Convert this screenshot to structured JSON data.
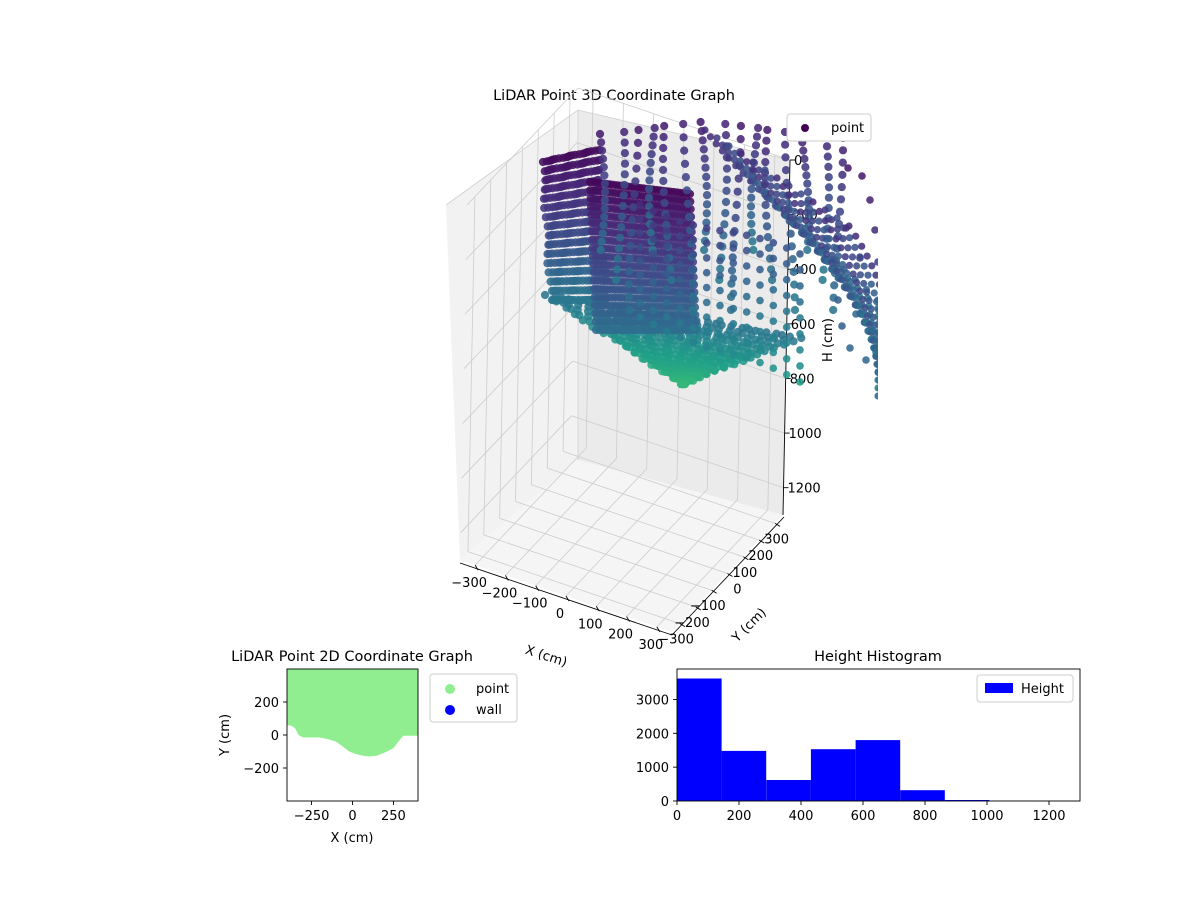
{
  "chart_data": [
    {
      "type": "scatter",
      "projection": "3d",
      "title": "LiDAR Point 3D Coordinate Graph",
      "xlabel": "X (cm)",
      "ylabel": "Y (cm)",
      "zlabel": "H (cm)",
      "xticks": [
        "−300",
        "−200",
        "−100",
        "0",
        "100",
        "200",
        "300"
      ],
      "yticks": [
        "−300",
        "−200",
        "−100",
        "0",
        "100",
        "200",
        "300"
      ],
      "zticks": [
        "0",
        "200",
        "400",
        "600",
        "800",
        "1000",
        "1200"
      ],
      "xlim": [
        -350,
        350
      ],
      "ylim": [
        -350,
        350
      ],
      "zlim": [
        1300,
        0
      ],
      "zaxis_inverted": true,
      "colormap": "viridis",
      "grid": true,
      "legend": {
        "position": "top-right",
        "entries": [
          {
            "label": "point",
            "color": "#440154"
          }
        ]
      }
    },
    {
      "type": "scatter",
      "title": "LiDAR Point 2D Coordinate Graph",
      "xlabel": "X (cm)",
      "ylabel": "Y (cm)",
      "xticks": [
        "−250",
        "0",
        "250"
      ],
      "yticks": [
        "200",
        "0",
        "−200"
      ],
      "xlim": [
        -400,
        400
      ],
      "ylim": [
        -400,
        400
      ],
      "legend": {
        "position": "outside-right",
        "entries": [
          {
            "label": "point",
            "color": "#90ee90"
          },
          {
            "label": "wall",
            "color": "#0000ff"
          }
        ]
      },
      "boundary": {
        "x": [
          -400,
          -370,
          -350,
          -330,
          -300,
          -250,
          -200,
          -150,
          -100,
          -60,
          -20,
          20,
          60,
          100,
          150,
          200,
          250,
          280,
          310,
          330,
          350,
          380,
          400
        ],
        "y": [
          60,
          55,
          40,
          0,
          -15,
          -15,
          -15,
          -25,
          -40,
          -70,
          -100,
          -115,
          -125,
          -130,
          -125,
          -105,
          -80,
          -40,
          -5,
          -5,
          -5,
          -5,
          -5
        ]
      }
    },
    {
      "type": "bar",
      "subtype": "histogram",
      "title": "Height Histogram",
      "bin_edges": [
        0,
        144,
        288,
        432,
        576,
        720,
        864,
        1008,
        1152,
        1296
      ],
      "values": [
        3620,
        1480,
        620,
        1530,
        1800,
        320,
        30,
        5,
        2
      ],
      "xticks": [
        "0",
        "200",
        "400",
        "600",
        "800",
        "1000",
        "1200"
      ],
      "yticks": [
        "0",
        "1000",
        "2000",
        "3000"
      ],
      "xlim": [
        0,
        1300
      ],
      "ylim": [
        0,
        3900
      ],
      "color": "#0000ff",
      "legend": {
        "position": "top-right",
        "entries": [
          {
            "label": "Height",
            "color": "#0000ff"
          }
        ]
      }
    }
  ]
}
